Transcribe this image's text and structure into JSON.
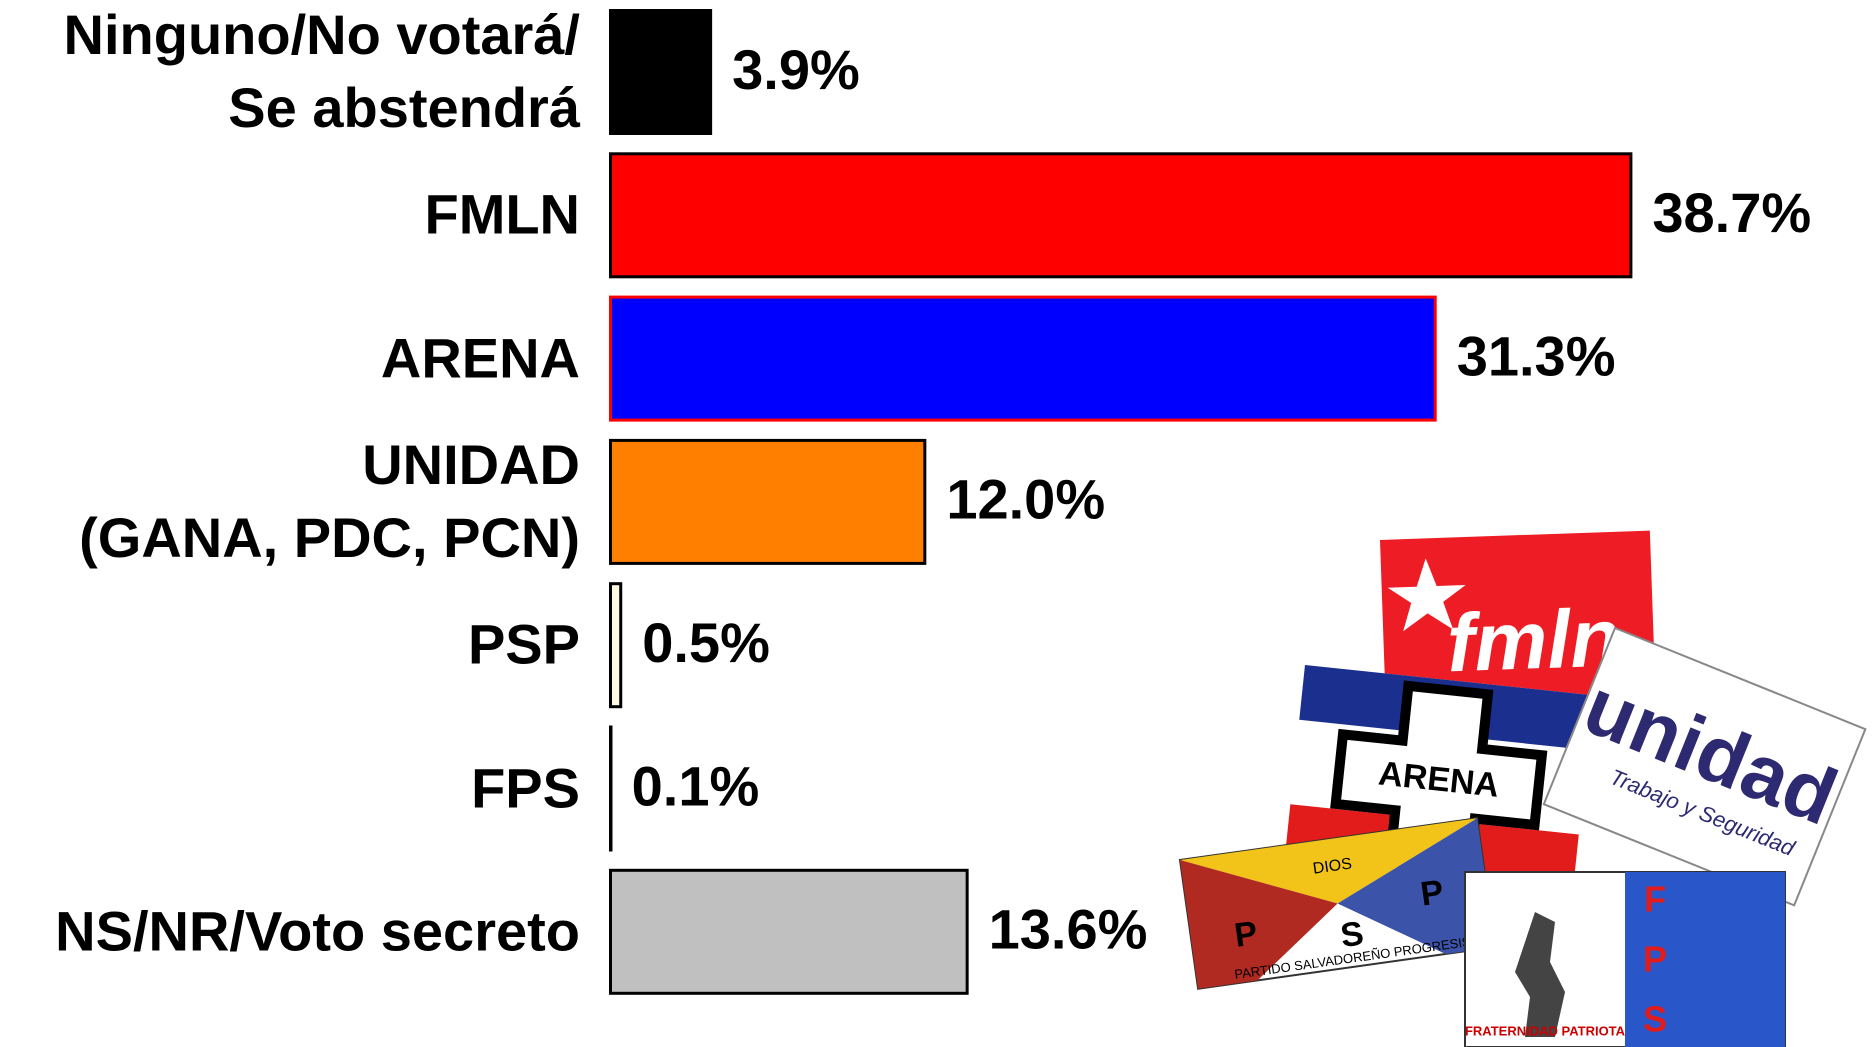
{
  "chart_data": {
    "type": "barh",
    "categories": [
      "Ninguno/No votará/\nSe abstendrá",
      "FMLN",
      "ARENA",
      "UNIDAD\n(GANA, PDC, PCN)",
      "PSP",
      "FPS",
      "NS/NR/Voto secreto"
    ],
    "values": [
      3.9,
      38.7,
      31.3,
      12.0,
      0.5,
      0.1,
      13.6
    ],
    "value_labels": [
      "3.9%",
      "38.7%",
      "31.3%",
      "12.0%",
      "0.5%",
      "0.1%",
      "13.6%"
    ],
    "colors": [
      "#000000",
      "#ff0000",
      "#0000ff",
      "#ff8000",
      "#fffbe0",
      "#000000",
      "#c0c0c0"
    ],
    "edgecolors": [
      "#000000",
      "#000000",
      "#ff0000",
      "#000000",
      "#000000",
      "#000000",
      "#000000"
    ],
    "xlim": [
      0,
      45
    ]
  },
  "logos": {
    "fmln": "fmln",
    "arena": "ARENA",
    "unidad": "unidad",
    "unidad_sub": "Trabajo y Seguridad",
    "psp_letters": [
      "P",
      "S",
      "P"
    ],
    "psp_name": "PARTIDO SALVADOREÑO PROGRESISTA",
    "psp_top": "DIOS",
    "fps_letters": [
      "F",
      "P",
      "S"
    ],
    "fps_name": "FRATERNIDAD PATRIOTA"
  }
}
